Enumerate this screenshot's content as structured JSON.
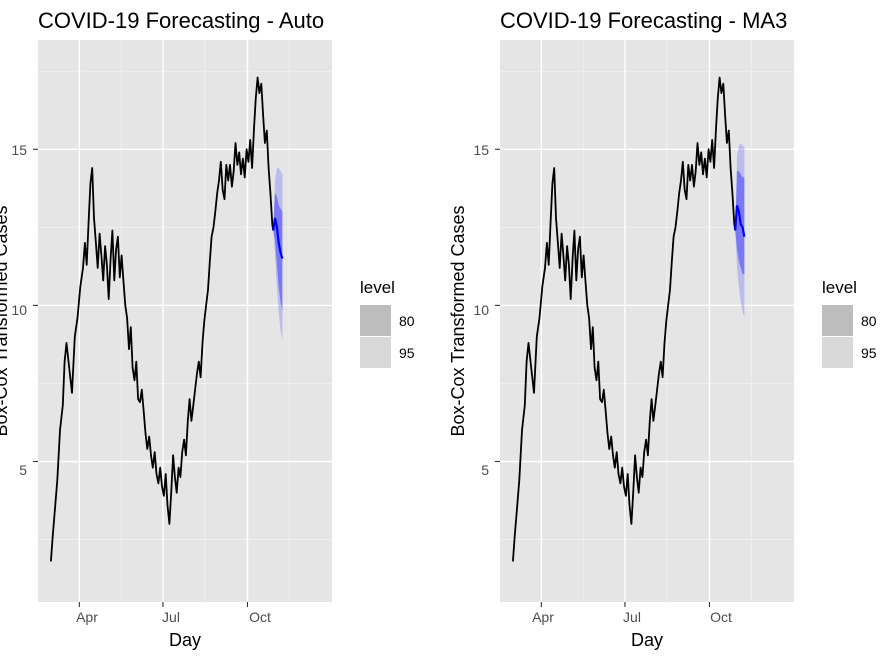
{
  "chart_data": [
    {
      "type": "line",
      "title": "COVID-19 Forecasting - Auto",
      "xlabel": "Day",
      "ylabel": "Box-Cox Transformed Cases",
      "x_unit": "day index (0 = 2020-03-01)",
      "xlim": [
        -14,
        306
      ],
      "ylim": [
        0.5,
        18.5
      ],
      "x_ticks": [
        {
          "label": "Apr",
          "day": 31
        },
        {
          "label": "Jul",
          "day": 122
        },
        {
          "label": "Oct",
          "day": 214
        }
      ],
      "y_ticks": [
        5,
        10,
        15
      ],
      "history": {
        "name": "observed",
        "points": [
          [
            0,
            1.8
          ],
          [
            2,
            2.6
          ],
          [
            4,
            3.3
          ],
          [
            7,
            4.4
          ],
          [
            10,
            6.0
          ],
          [
            13,
            6.8
          ],
          [
            15,
            8.2
          ],
          [
            17,
            8.8
          ],
          [
            20,
            8.0
          ],
          [
            23,
            7.2
          ],
          [
            26,
            9.0
          ],
          [
            29,
            9.6
          ],
          [
            32,
            10.6
          ],
          [
            35,
            11.2
          ],
          [
            37,
            12.0
          ],
          [
            39,
            11.3
          ],
          [
            41,
            12.6
          ],
          [
            43,
            13.9
          ],
          [
            45,
            14.4
          ],
          [
            47,
            12.8
          ],
          [
            49,
            12.0
          ],
          [
            51,
            11.2
          ],
          [
            53,
            12.3
          ],
          [
            55,
            11.6
          ],
          [
            57,
            10.8
          ],
          [
            59,
            11.9
          ],
          [
            61,
            11.3
          ],
          [
            63,
            10.2
          ],
          [
            65,
            11.5
          ],
          [
            67,
            12.4
          ],
          [
            69,
            10.8
          ],
          [
            71,
            11.8
          ],
          [
            73,
            12.2
          ],
          [
            75,
            10.9
          ],
          [
            77,
            11.6
          ],
          [
            79,
            10.8
          ],
          [
            81,
            10.0
          ],
          [
            83,
            9.6
          ],
          [
            85,
            8.6
          ],
          [
            87,
            9.3
          ],
          [
            89,
            8.0
          ],
          [
            91,
            7.6
          ],
          [
            93,
            8.2
          ],
          [
            95,
            7.0
          ],
          [
            97,
            6.9
          ],
          [
            99,
            7.3
          ],
          [
            101,
            6.6
          ],
          [
            103,
            5.9
          ],
          [
            105,
            5.4
          ],
          [
            107,
            5.8
          ],
          [
            109,
            5.2
          ],
          [
            111,
            4.8
          ],
          [
            113,
            5.3
          ],
          [
            115,
            4.6
          ],
          [
            117,
            4.3
          ],
          [
            119,
            4.8
          ],
          [
            121,
            4.2
          ],
          [
            123,
            3.9
          ],
          [
            125,
            4.6
          ],
          [
            127,
            3.6
          ],
          [
            129,
            3.0
          ],
          [
            131,
            4.0
          ],
          [
            133,
            5.2
          ],
          [
            135,
            4.5
          ],
          [
            137,
            4.0
          ],
          [
            139,
            4.8
          ],
          [
            141,
            4.5
          ],
          [
            143,
            5.3
          ],
          [
            145,
            5.7
          ],
          [
            147,
            5.2
          ],
          [
            149,
            6.3
          ],
          [
            151,
            7.0
          ],
          [
            153,
            6.3
          ],
          [
            155,
            6.8
          ],
          [
            157,
            7.3
          ],
          [
            159,
            7.8
          ],
          [
            161,
            8.2
          ],
          [
            163,
            7.7
          ],
          [
            165,
            8.8
          ],
          [
            167,
            9.5
          ],
          [
            169,
            10.0
          ],
          [
            171,
            10.5
          ],
          [
            173,
            11.4
          ],
          [
            175,
            12.2
          ],
          [
            177,
            12.5
          ],
          [
            179,
            13.0
          ],
          [
            181,
            13.6
          ],
          [
            183,
            14.0
          ],
          [
            185,
            14.6
          ],
          [
            187,
            13.7
          ],
          [
            189,
            13.4
          ],
          [
            191,
            14.5
          ],
          [
            193,
            14.0
          ],
          [
            195,
            14.5
          ],
          [
            197,
            13.8
          ],
          [
            199,
            14.3
          ],
          [
            201,
            15.2
          ],
          [
            203,
            14.5
          ],
          [
            205,
            14.9
          ],
          [
            207,
            14.2
          ],
          [
            209,
            14.7
          ],
          [
            211,
            14.1
          ],
          [
            213,
            15.0
          ],
          [
            215,
            14.6
          ],
          [
            217,
            15.3
          ],
          [
            219,
            14.4
          ],
          [
            221,
            15.6
          ],
          [
            223,
            16.6
          ],
          [
            225,
            17.3
          ],
          [
            227,
            16.8
          ],
          [
            229,
            17.1
          ],
          [
            231,
            16.1
          ],
          [
            233,
            15.2
          ],
          [
            235,
            15.6
          ],
          [
            237,
            14.4
          ],
          [
            239,
            13.6
          ],
          [
            241,
            12.6
          ],
          [
            242,
            12.4
          ]
        ]
      },
      "forecast": {
        "name": "forecast",
        "points": [
          [
            242,
            12.4
          ],
          [
            244,
            12.8
          ],
          [
            246,
            12.5
          ],
          [
            248,
            12.0
          ],
          [
            250,
            11.7
          ],
          [
            252,
            11.5
          ]
        ],
        "level_80": {
          "lower": [
            12.4,
            12.1,
            11.3,
            10.6,
            10.1,
            9.8
          ],
          "upper": [
            12.4,
            13.6,
            13.5,
            13.2,
            13.1,
            13.0
          ]
        },
        "level_95": {
          "lower": [
            12.4,
            11.6,
            10.6,
            9.8,
            9.2,
            8.9
          ],
          "upper": [
            12.4,
            14.0,
            14.4,
            14.4,
            14.3,
            14.2
          ]
        }
      },
      "legend": {
        "title": "level",
        "entries": [
          "80",
          "95"
        ],
        "position": "right"
      }
    },
    {
      "type": "line",
      "title": "COVID-19 Forecasting - MA3",
      "xlabel": "Day",
      "ylabel": "Box-Cox Transformed Cases",
      "x_unit": "day index (0 = 2020-03-01)",
      "xlim": [
        -14,
        306
      ],
      "ylim": [
        0.5,
        18.5
      ],
      "x_ticks": [
        {
          "label": "Apr",
          "day": 31
        },
        {
          "label": "Jul",
          "day": 122
        },
        {
          "label": "Oct",
          "day": 214
        }
      ],
      "y_ticks": [
        5,
        10,
        15
      ],
      "history": {
        "same_as_first_chart": true
      },
      "forecast": {
        "name": "forecast",
        "points": [
          [
            242,
            12.4
          ],
          [
            244,
            13.2
          ],
          [
            246,
            13.0
          ],
          [
            248,
            12.6
          ],
          [
            250,
            12.5
          ],
          [
            252,
            12.2
          ]
        ],
        "level_80": {
          "lower": [
            12.4,
            11.8,
            11.4,
            11.2,
            11.0,
            11.0
          ],
          "upper": [
            12.4,
            14.3,
            14.3,
            14.2,
            14.1,
            14.1
          ]
        },
        "level_95": {
          "lower": [
            12.4,
            11.2,
            10.6,
            10.1,
            9.8,
            9.6
          ],
          "upper": [
            12.4,
            14.8,
            15.1,
            15.2,
            15.1,
            15.1
          ]
        }
      },
      "legend": {
        "title": "level",
        "entries": [
          "80",
          "95"
        ],
        "position": "right"
      }
    }
  ],
  "colors": {
    "panel_background": "#e5e5e5",
    "grid": "#ffffff",
    "history_line": "#000000",
    "forecast_line": "#0000ff",
    "band_80": "#2a2aff",
    "band_95": "#5a5aff",
    "legend_80": "#bdbdbd",
    "legend_95": "#d9d9d9"
  }
}
